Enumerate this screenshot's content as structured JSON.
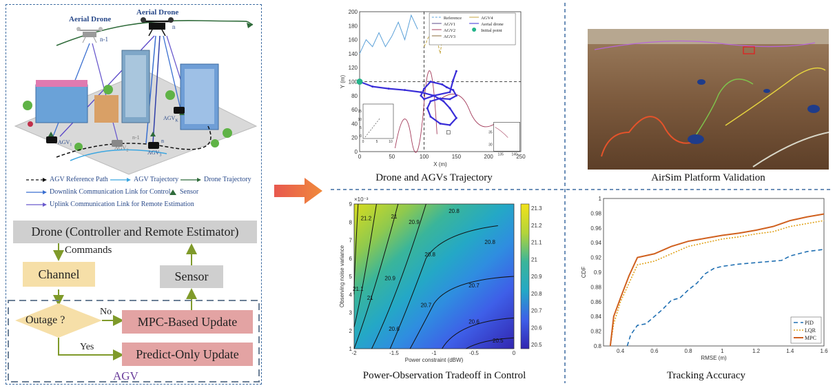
{
  "left": {
    "drone_label_1": "Aerial Drone",
    "drone_label_2": "Aerial Drone",
    "drone_n1": "n-1",
    "drone_n": "n",
    "agv_1": "AGV",
    "agv_1_sub": "1",
    "agv_2": "AGV",
    "agv_2_sub": "2",
    "agv_2_n1": "n-1",
    "agv_3": "AGV",
    "agv_3_sub": "3",
    "agv_3_n": "n",
    "agv_k": "AGV",
    "agv_k_sub": "K",
    "legend": [
      "AGV Reference Path",
      "AGV Trajectory",
      "Drone Trajectory",
      "Downlink Communication Link for Control",
      "Sensor",
      "Uplink Communication Link for Remote Estimation"
    ],
    "flow": {
      "drone_box": "Drone (Controller and Remote Estimator)",
      "commands": "Commands",
      "channel": "Channel",
      "sensor": "Sensor",
      "outage": "Outage ?",
      "no": "No",
      "yes": "Yes",
      "mpc": "MPC-Based Update",
      "predict": "Predict-Only Update",
      "agv": "AGV"
    }
  },
  "captions": {
    "trajectory": "Drone and AGVs Trajectory",
    "airsim": "AirSim Platform Validation",
    "tradeoff": "Power-Observation Tradeoff in Control",
    "tracking": "Tracking Accuracy"
  },
  "colors": {
    "arrow_gradient_start": "#e8584e",
    "arrow_gradient_end": "#f08a3c",
    "separator": "#3b6aa0",
    "drone_path": "#3a2ed8",
    "pid": "#1f6fb2",
    "lqr": "#e0a21a",
    "mpc": "#d0601e"
  },
  "chart_data": [
    {
      "type": "line",
      "xlabel": "X (m)",
      "ylabel": "Y (m)",
      "xlim": [
        0,
        250
      ],
      "ylim": [
        0,
        200
      ],
      "xticks": [
        "0",
        "50",
        "100",
        "150",
        "200",
        "250"
      ],
      "yticks": [
        "0",
        "20",
        "40",
        "60",
        "80",
        "100",
        "120",
        "140",
        "160",
        "180",
        "200"
      ],
      "legend": [
        "Reference",
        "AGV1",
        "AGV2",
        "AGV3",
        "AGV4",
        "Aerial drone",
        "Initial point"
      ],
      "inset_left": {
        "xticks": [
          "0",
          "5",
          "10"
        ],
        "yticks": [
          "0",
          "5",
          "10",
          "15"
        ]
      },
      "inset_right": {
        "xticks": [
          "135",
          "140"
        ],
        "yticks": [
          "30",
          "35"
        ]
      },
      "series": [
        {
          "name": "Aerial drone",
          "x": [
            0,
            20,
            45,
            70,
            95,
            115,
            130,
            140,
            150,
            140,
            125,
            110,
            105,
            110,
            125,
            140,
            150,
            145,
            135,
            128,
            110,
            100,
            95,
            100,
            115,
            140,
            145,
            150
          ],
          "y": [
            100,
            93,
            90,
            88,
            85,
            80,
            72,
            62,
            48,
            38,
            40,
            50,
            62,
            72,
            76,
            75,
            80,
            88,
            92,
            96,
            100,
            90,
            80,
            75,
            80,
            85,
            102,
            115
          ]
        },
        {
          "name": "AGV1",
          "x": [
            0,
            10,
            20,
            30,
            40,
            50,
            60,
            70,
            80,
            90
          ],
          "y": [
            140,
            160,
            150,
            170,
            150,
            165,
            185,
            160,
            195,
            175
          ]
        },
        {
          "name": "AGV4",
          "x": [
            100,
            110,
            115,
            120,
            125,
            130,
            135,
            140,
            145
          ],
          "y": [
            150,
            170,
            175,
            160,
            140,
            175,
            160,
            190,
            180
          ]
        }
      ]
    },
    {
      "type": "heatmap",
      "xlabel": "Power constraint (dBW)",
      "ylabel": "Observing noise variance",
      "y_scale_label": "×10⁻³",
      "xlim": [
        -2,
        0
      ],
      "ylim": [
        1,
        9
      ],
      "xticks": [
        "-2",
        "-1.5",
        "-1",
        "-0.5",
        "0"
      ],
      "yticks": [
        "1",
        "2",
        "3",
        "4",
        "5",
        "6",
        "7",
        "8",
        "9"
      ],
      "colorbar_ticks": [
        "21.3",
        "21.2",
        "21.1",
        "21",
        "20.9",
        "20.8",
        "20.7",
        "20.6",
        "20.5"
      ],
      "contour_labels": [
        "21.2",
        "21",
        "20.9",
        "20.8",
        "20.8",
        "21.1",
        "21",
        "20.9",
        "20.8",
        "20.7",
        "20.7",
        "20.6",
        "20.6",
        "20.5"
      ]
    },
    {
      "type": "line",
      "xlabel": "RMSE (m)",
      "ylabel": "CDF",
      "xlim": [
        0.3,
        1.6
      ],
      "ylim": [
        0.8,
        1
      ],
      "xticks": [
        "0.4",
        "0.6",
        "0.8",
        "1",
        "1.2",
        "1.4",
        "1.6"
      ],
      "yticks": [
        "0.8",
        "0.82",
        "0.84",
        "0.86",
        "0.88",
        "0.9",
        "0.92",
        "0.94",
        "0.96",
        "0.98",
        "1"
      ],
      "legend_position": "bottom-right",
      "series": [
        {
          "name": "PID",
          "x": [
            0.44,
            0.46,
            0.5,
            0.55,
            0.6,
            0.65,
            0.7,
            0.75,
            0.8,
            0.85,
            0.9,
            0.95,
            1.0,
            1.1,
            1.2,
            1.3,
            1.35,
            1.4,
            1.5,
            1.6
          ],
          "y": [
            0.8,
            0.815,
            0.828,
            0.83,
            0.84,
            0.85,
            0.862,
            0.865,
            0.876,
            0.885,
            0.898,
            0.905,
            0.908,
            0.911,
            0.913,
            0.915,
            0.916,
            0.922,
            0.928,
            0.931
          ]
        },
        {
          "name": "LQR",
          "x": [
            0.34,
            0.36,
            0.4,
            0.45,
            0.5,
            0.6,
            0.7,
            0.8,
            0.9,
            1.0,
            1.1,
            1.2,
            1.3,
            1.4,
            1.5,
            1.6
          ],
          "y": [
            0.8,
            0.83,
            0.86,
            0.885,
            0.91,
            0.915,
            0.925,
            0.935,
            0.94,
            0.945,
            0.948,
            0.952,
            0.955,
            0.962,
            0.966,
            0.97
          ]
        },
        {
          "name": "MPC",
          "x": [
            0.34,
            0.36,
            0.4,
            0.45,
            0.5,
            0.6,
            0.7,
            0.8,
            0.9,
            1.0,
            1.1,
            1.2,
            1.3,
            1.4,
            1.5,
            1.6
          ],
          "y": [
            0.8,
            0.84,
            0.865,
            0.895,
            0.92,
            0.925,
            0.935,
            0.942,
            0.946,
            0.95,
            0.953,
            0.957,
            0.962,
            0.97,
            0.975,
            0.979
          ]
        }
      ]
    }
  ]
}
